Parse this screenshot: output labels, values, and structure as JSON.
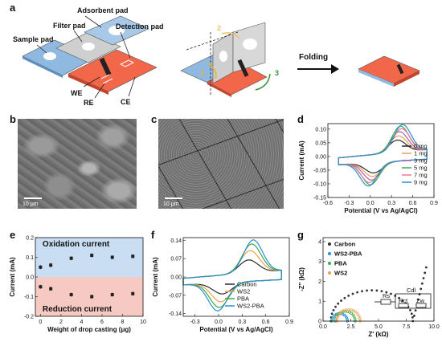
{
  "panels": {
    "a": "a",
    "b": "b",
    "c": "c",
    "d": "d",
    "e": "e",
    "f": "f",
    "g": "g"
  },
  "schematic": {
    "adsorbent_pad": "Adsorbent pad",
    "filter_pad": "Filter pad",
    "detection_pad": "Detection pad",
    "sample_pad": "Sample pad",
    "we": "WE",
    "re": "RE",
    "ce": "CE",
    "folding": "Folding",
    "step1": "1",
    "step2": "2",
    "step3": "3",
    "sensor_text": "Lactate Sensor"
  },
  "sem": {
    "scale_b": "10 μm",
    "scale_c": "10 μm"
  },
  "colors": {
    "blue_pad": "#8fb9e0",
    "red_pad": "#f2664a",
    "grey_pad": "#bfbfbf",
    "ox_band": "#c9ddf3",
    "red_band": "#f6c9c2"
  },
  "chart_data": [
    {
      "id": "d",
      "type": "line",
      "xlabel": "Potential (V vs Ag/AgCl)",
      "ylabel": "Current (mA)",
      "xlim": [
        -0.6,
        0.9
      ],
      "ylim": [
        -0.15,
        0.12
      ],
      "xticks": [
        "-0.6",
        "-0.3",
        "0.0",
        "0.3",
        "0.6",
        "0.9"
      ],
      "yticks": [
        "-0.15",
        "-0.10",
        "-0.05",
        "0.00",
        "0.05",
        "0.10"
      ],
      "legend_position": "right",
      "series": [
        {
          "name": "0 mg",
          "color": "#2b2b2b",
          "peak": 0.045
        },
        {
          "name": "1 mg",
          "color": "#f0a050",
          "peak": 0.06
        },
        {
          "name": "3 mg",
          "color": "#a65fbf",
          "peak": 0.075
        },
        {
          "name": "5 mg",
          "color": "#3aaa4a",
          "peak": 0.095
        },
        {
          "name": "7 mg",
          "color": "#f07890",
          "peak": 0.085
        },
        {
          "name": "9 mg",
          "color": "#2a8fd0",
          "peak": 0.1
        }
      ]
    },
    {
      "id": "e",
      "type": "scatter",
      "xlabel": "Weight of drop casting (μg)",
      "ylabel": "Current (mA)",
      "xlim": [
        -0.5,
        10
      ],
      "ylim": [
        -0.2,
        0.2
      ],
      "xticks": [
        "0",
        "2",
        "4",
        "6",
        "8",
        "10"
      ],
      "yticks": [
        "-0.2",
        "-0.1",
        "0.0",
        "0.1",
        "0.2"
      ],
      "band_top": "Oxidation current",
      "band_bottom": "Reduction current",
      "x": [
        0,
        1,
        3,
        5,
        7,
        9
      ],
      "oxidation": [
        0.05,
        0.06,
        0.095,
        0.11,
        0.1,
        0.105
      ],
      "reduction": [
        -0.05,
        -0.06,
        -0.09,
        -0.1,
        -0.09,
        -0.085
      ]
    },
    {
      "id": "f",
      "type": "line",
      "xlabel": "Potential (V vs Ag/AgCl)",
      "ylabel": "Current (mA)",
      "xlim": [
        -0.45,
        0.9
      ],
      "ylim": [
        -0.15,
        0.15
      ],
      "xticks": [
        "-0.3",
        "0.0",
        "0.3",
        "0.6",
        "0.9"
      ],
      "yticks": [
        "-0.14",
        "-0.07",
        "0.00",
        "0.07",
        "0.14"
      ],
      "legend_position": "right",
      "series": [
        {
          "name": "Carbon",
          "color": "#2b2b2b",
          "peak": 0.05
        },
        {
          "name": "WS2",
          "color": "#f0a050",
          "peak": 0.085
        },
        {
          "name": "PBA",
          "color": "#3aaa4a",
          "peak": 0.11
        },
        {
          "name": "WS2-PBA",
          "color": "#2a8fd0",
          "peak": 0.125
        }
      ]
    },
    {
      "id": "g",
      "type": "scatter",
      "xlabel": "Z' (kΩ)",
      "ylabel": "-Z'' (kΩ)",
      "xlim": [
        0,
        10
      ],
      "ylim": [
        0,
        4.2
      ],
      "xticks": [
        "0.0",
        "2.5",
        "5.0",
        "7.5",
        "10.0"
      ],
      "yticks": [
        "0",
        "1",
        "2",
        "3",
        "4"
      ],
      "legend_position": "top-left",
      "series": [
        {
          "name": "Carbon",
          "color": "#333333"
        },
        {
          "name": "WS2-PBA",
          "color": "#2a8fd0"
        },
        {
          "name": "PBA",
          "color": "#3aaa4a"
        },
        {
          "name": "WS2",
          "color": "#f0a050"
        }
      ],
      "circuit": {
        "rs": "Rs",
        "rct": "Rct",
        "cdl": "Cdl",
        "zw": "Zw"
      }
    }
  ]
}
